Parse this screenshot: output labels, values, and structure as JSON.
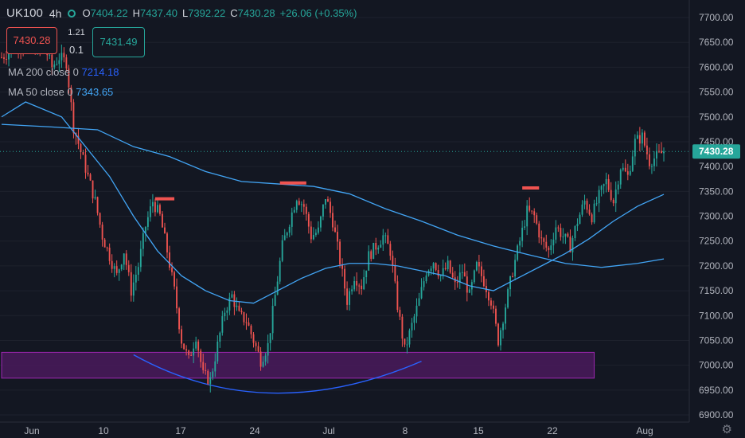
{
  "header": {
    "symbol": "UK100",
    "interval": "4h",
    "open_label": "O",
    "open": "7404.22",
    "high_label": "H",
    "high": "7437.40",
    "low_label": "L",
    "low": "7392.22",
    "close_label": "C",
    "close": "7430.28",
    "change": "+26.06 (+0.35%)"
  },
  "trade": {
    "sell_price": "7430.28",
    "spread_top": "1.21",
    "spread_bottom": "0.1",
    "buy_price": "7431.49"
  },
  "indicators": [
    {
      "label": "MA 200 close 0",
      "value": "7214.18"
    },
    {
      "label": "MA 50 close 0",
      "value": "7343.65"
    }
  ],
  "colors": {
    "background": "#131722",
    "up": "#26a69a",
    "down": "#ef5350",
    "ma_line": "#42a5f5",
    "zone_fill": "#4a1a5c",
    "zone_stroke": "#9c27b0",
    "arc": "#2962ff",
    "marker": "#ef5350",
    "price_tag": "#26a69a"
  },
  "icons": {
    "settings": "gear-icon",
    "status_dot": "circle-icon"
  },
  "chart_data": {
    "type": "candlestick",
    "ylim": [
      6885,
      7730
    ],
    "y_ticks": [
      "7700.00",
      "7650.00",
      "7600.00",
      "7550.00",
      "7500.00",
      "7450.00",
      "7400.00",
      "7350.00",
      "7300.00",
      "7250.00",
      "7200.00",
      "7150.00",
      "7100.00",
      "7050.00",
      "7000.00",
      "6950.00",
      "6900.00"
    ],
    "x_labels": [
      "Jun",
      "10",
      "17",
      "24",
      "Jul",
      "8",
      "15",
      "22",
      "Aug"
    ],
    "last_price_label": "7430.28",
    "last_price": 7430.28,
    "path_points": [
      [
        0,
        7620
      ],
      [
        3,
        7630
      ],
      [
        6,
        7650
      ],
      [
        9,
        7640
      ],
      [
        12,
        7660
      ],
      [
        15,
        7630
      ],
      [
        18,
        7640
      ],
      [
        21,
        7600
      ],
      [
        24,
        7620
      ],
      [
        27,
        7610
      ],
      [
        30,
        7480
      ],
      [
        33,
        7430
      ],
      [
        36,
        7380
      ],
      [
        39,
        7330
      ],
      [
        42,
        7260
      ],
      [
        45,
        7220
      ],
      [
        48,
        7180
      ],
      [
        51,
        7230
      ],
      [
        54,
        7150
      ],
      [
        57,
        7200
      ],
      [
        60,
        7280
      ],
      [
        63,
        7330
      ],
      [
        66,
        7300
      ],
      [
        69,
        7230
      ],
      [
        72,
        7150
      ],
      [
        75,
        7050
      ],
      [
        78,
        7010
      ],
      [
        81,
        7060
      ],
      [
        84,
        6980
      ],
      [
        87,
        6970
      ],
      [
        90,
        7040
      ],
      [
        93,
        7110
      ],
      [
        96,
        7140
      ],
      [
        99,
        7100
      ],
      [
        102,
        7090
      ],
      [
        105,
        7050
      ],
      [
        108,
        7010
      ],
      [
        111,
        7040
      ],
      [
        114,
        7140
      ],
      [
        117,
        7240
      ],
      [
        120,
        7290
      ],
      [
        123,
        7340
      ],
      [
        126,
        7320
      ],
      [
        129,
        7260
      ],
      [
        132,
        7270
      ],
      [
        135,
        7340
      ],
      [
        138,
        7290
      ],
      [
        141,
        7210
      ],
      [
        144,
        7130
      ],
      [
        147,
        7180
      ],
      [
        150,
        7160
      ],
      [
        153,
        7220
      ],
      [
        156,
        7240
      ],
      [
        159,
        7260
      ],
      [
        162,
        7230
      ],
      [
        165,
        7120
      ],
      [
        168,
        7030
      ],
      [
        171,
        7080
      ],
      [
        174,
        7130
      ],
      [
        177,
        7190
      ],
      [
        180,
        7210
      ],
      [
        183,
        7180
      ],
      [
        186,
        7200
      ],
      [
        189,
        7160
      ],
      [
        192,
        7190
      ],
      [
        195,
        7140
      ],
      [
        198,
        7200
      ],
      [
        201,
        7170
      ],
      [
        204,
        7130
      ],
      [
        207,
        7050
      ],
      [
        210,
        7120
      ],
      [
        213,
        7190
      ],
      [
        216,
        7250
      ],
      [
        219,
        7310
      ],
      [
        222,
        7300
      ],
      [
        225,
        7250
      ],
      [
        228,
        7230
      ],
      [
        231,
        7280
      ],
      [
        234,
        7260
      ],
      [
        237,
        7240
      ],
      [
        240,
        7290
      ],
      [
        243,
        7330
      ],
      [
        246,
        7300
      ],
      [
        249,
        7340
      ],
      [
        252,
        7370
      ],
      [
        255,
        7330
      ],
      [
        258,
        7400
      ],
      [
        261,
        7380
      ],
      [
        264,
        7450
      ],
      [
        267,
        7460
      ],
      [
        270,
        7410
      ],
      [
        273,
        7420
      ],
      [
        276,
        7430
      ]
    ],
    "ma200": [
      [
        0,
        7485
      ],
      [
        20,
        7480
      ],
      [
        40,
        7474
      ],
      [
        55,
        7440
      ],
      [
        70,
        7420
      ],
      [
        85,
        7390
      ],
      [
        100,
        7370
      ],
      [
        115,
        7365
      ],
      [
        130,
        7360
      ],
      [
        145,
        7345
      ],
      [
        160,
        7315
      ],
      [
        175,
        7290
      ],
      [
        190,
        7262
      ],
      [
        205,
        7240
      ],
      [
        220,
        7222
      ],
      [
        235,
        7205
      ],
      [
        250,
        7197
      ],
      [
        265,
        7205
      ],
      [
        276,
        7214
      ]
    ],
    "ma50": [
      [
        0,
        7500
      ],
      [
        10,
        7530
      ],
      [
        25,
        7500
      ],
      [
        35,
        7440
      ],
      [
        45,
        7380
      ],
      [
        55,
        7300
      ],
      [
        65,
        7230
      ],
      [
        75,
        7180
      ],
      [
        85,
        7150
      ],
      [
        95,
        7130
      ],
      [
        105,
        7125
      ],
      [
        115,
        7150
      ],
      [
        125,
        7175
      ],
      [
        135,
        7195
      ],
      [
        145,
        7205
      ],
      [
        155,
        7205
      ],
      [
        165,
        7200
      ],
      [
        175,
        7190
      ],
      [
        185,
        7180
      ],
      [
        195,
        7160
      ],
      [
        205,
        7150
      ],
      [
        215,
        7175
      ],
      [
        225,
        7200
      ],
      [
        235,
        7225
      ],
      [
        245,
        7255
      ],
      [
        255,
        7290
      ],
      [
        265,
        7320
      ],
      [
        276,
        7344
      ]
    ],
    "highlights": {
      "resistance_markers": [
        {
          "x_start": 64,
          "x_end": 72,
          "y": 7335
        },
        {
          "x_start": 116,
          "x_end": 127,
          "y": 7367
        },
        {
          "x_start": 217,
          "x_end": 224,
          "y": 7357
        }
      ],
      "support_zone": {
        "x_start": 0,
        "x_end": 245,
        "y_low": 6974,
        "y_high": 7026
      },
      "arc": {
        "x_start": 55,
        "x_mid": 110,
        "x_end": 175,
        "y_end": 7008,
        "y_mid": 6944
      }
    }
  }
}
